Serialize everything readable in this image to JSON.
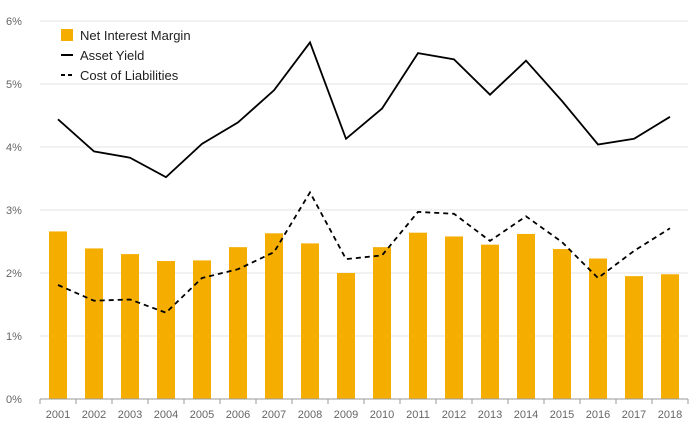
{
  "colors": {
    "bar": "#f5ad00",
    "line": "#000000",
    "grid": "#e3e3e3",
    "axis": "#9a9a9a",
    "tick_text": "#666666"
  },
  "chart_data": {
    "type": "bar",
    "title": "",
    "xlabel": "",
    "ylabel": "",
    "categories": [
      "2001",
      "2002",
      "2003",
      "2004",
      "2005",
      "2006",
      "2007",
      "2008",
      "2009",
      "2010",
      "2011",
      "2012",
      "2013",
      "2014",
      "2015",
      "2016",
      "2017",
      "2018"
    ],
    "ylim": [
      0,
      6
    ],
    "yticks": [
      0,
      1,
      2,
      3,
      4,
      5,
      6
    ],
    "ytick_labels": [
      "0%",
      "1%",
      "2%",
      "3%",
      "4%",
      "5%",
      "6%"
    ],
    "grid": true,
    "legend_position": "top-left",
    "series": [
      {
        "name": "Net Interest Margin",
        "type": "bar",
        "values": [
          2.66,
          2.39,
          2.3,
          2.19,
          2.2,
          2.41,
          2.63,
          2.47,
          2.0,
          2.41,
          2.64,
          2.58,
          2.45,
          2.62,
          2.38,
          2.23,
          1.95,
          1.98
        ]
      },
      {
        "name": "Asset Yield",
        "type": "line",
        "style": "solid",
        "values": [
          4.44,
          3.93,
          3.83,
          3.52,
          4.05,
          4.39,
          4.9,
          5.66,
          4.13,
          4.61,
          5.49,
          5.39,
          4.83,
          5.37,
          4.73,
          4.04,
          4.13,
          4.48
        ]
      },
      {
        "name": "Cost of Liabilities",
        "type": "line",
        "style": "dashed",
        "values": [
          1.81,
          1.56,
          1.58,
          1.37,
          1.92,
          2.06,
          2.33,
          3.28,
          2.22,
          2.28,
          2.97,
          2.94,
          2.51,
          2.9,
          2.49,
          1.92,
          2.35,
          2.71
        ]
      }
    ]
  }
}
